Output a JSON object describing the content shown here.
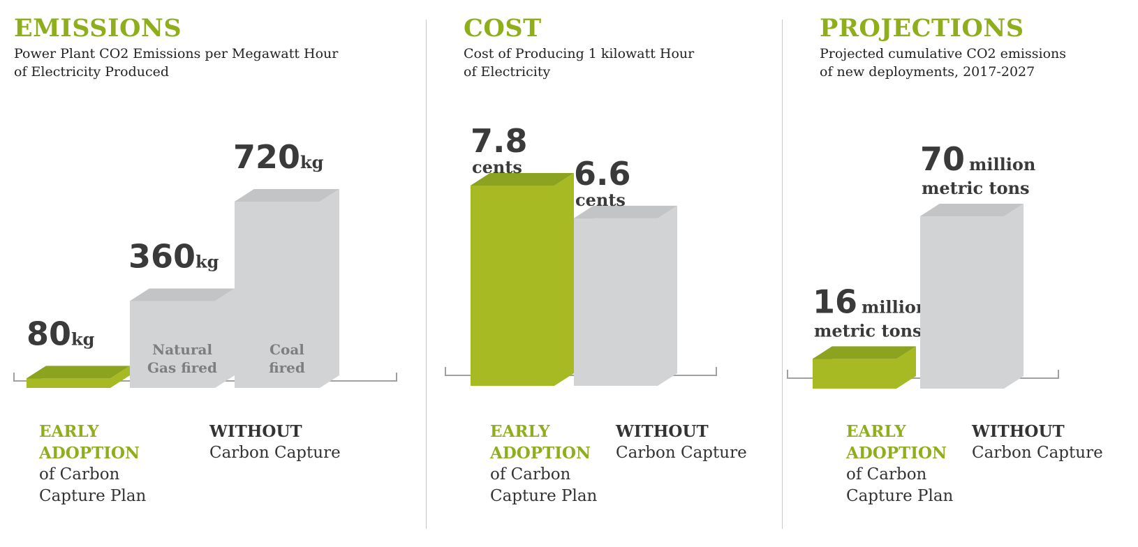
{
  "colors": {
    "accent": "#8fae1b",
    "green_front": "#a7b923",
    "green_side": "#76881b",
    "green_top": "#8ca31f",
    "gray_front": "#d2d3d5",
    "gray_side": "#b0b1b4",
    "gray_top": "#c3c4c6",
    "label_dark": "#3a3a3a",
    "bar_inner_label": "#7d7e80"
  },
  "chart_data": [
    {
      "type": "bar",
      "heading": "EMISSIONS",
      "subtitle_lines": [
        "Power Plant CO2 Emissions per Megawatt Hour",
        "of Electricity Produced"
      ],
      "categories": [
        "Early adoption",
        "Natural Gas fired",
        "Coal fired"
      ],
      "values": [
        80,
        360,
        720
      ],
      "unit": "kg",
      "bar_value_texts": [
        "80",
        "360",
        "720"
      ],
      "bar_unit_texts": [
        "kg",
        "kg",
        "kg"
      ],
      "bar_inner_labels": [
        [],
        [
          "Natural",
          "Gas fired"
        ],
        [
          "Coal",
          "fired"
        ]
      ],
      "bar_colors": [
        "green",
        "gray",
        "gray"
      ],
      "ylim": [
        0,
        720
      ],
      "legend": {
        "green_lines": [
          "EARLY",
          "ADOPTION"
        ],
        "green_rest": [
          "of Carbon",
          "Capture Plan"
        ],
        "dark_title": "WITHOUT",
        "dark_sub": "Carbon Capture"
      }
    },
    {
      "type": "bar",
      "heading": "COST",
      "subtitle_lines": [
        "Cost of Producing 1 kilowatt Hour",
        "of Electricity"
      ],
      "categories": [
        "Early adoption",
        "Without"
      ],
      "values": [
        7.8,
        6.6
      ],
      "unit": "cents",
      "bar_value_texts": [
        "7.8",
        "6.6"
      ],
      "bar_unit_texts": [
        "cents",
        "cents"
      ],
      "bar_inner_labels": [
        [],
        []
      ],
      "bar_colors": [
        "green",
        "gray"
      ],
      "ylim": [
        0,
        7.8
      ],
      "legend": {
        "green_lines": [
          "EARLY",
          "ADOPTION"
        ],
        "green_rest": [
          "of Carbon",
          "Capture Plan"
        ],
        "dark_title": "WITHOUT",
        "dark_sub": "Carbon Capture"
      }
    },
    {
      "type": "bar",
      "heading": "PROJECTIONS",
      "subtitle_lines": [
        "Projected cumulative CO2 emissions",
        "of new deployments, 2017-2027"
      ],
      "categories": [
        "Early adoption",
        "Without"
      ],
      "values": [
        16,
        70
      ],
      "unit": "million metric tons",
      "bar_value_texts": [
        "16",
        "70"
      ],
      "bar_unit_texts": [
        "million",
        "million"
      ],
      "bar_unit_lines2": [
        "metric tons",
        "metric tons"
      ],
      "bar_inner_labels": [
        [],
        []
      ],
      "bar_colors": [
        "green",
        "gray"
      ],
      "ylim": [
        0,
        70
      ],
      "legend": {
        "green_lines": [
          "EARLY",
          "ADOPTION"
        ],
        "green_rest": [
          "of Carbon",
          "Capture Plan"
        ],
        "dark_title": "WITHOUT",
        "dark_sub": "Carbon Capture"
      }
    }
  ]
}
